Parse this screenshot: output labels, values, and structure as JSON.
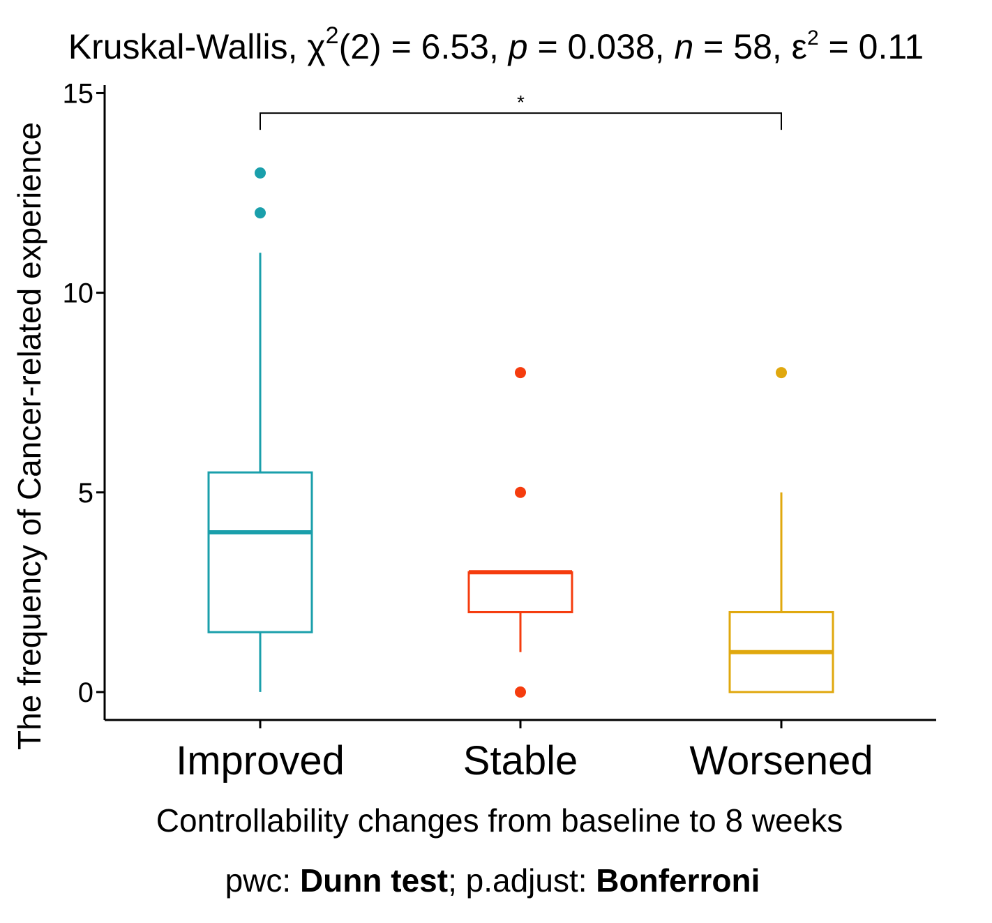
{
  "chart_data": {
    "type": "box",
    "title": {
      "prefix": "Kruskal-Wallis, ",
      "chi_symbol": "χ",
      "chi_superscript": "2",
      "chi_value": "(2) = 6.53, ",
      "p_symbol": "p",
      "p_value": " = 0.038, ",
      "n_symbol": "n",
      "n_value": " = 58, ",
      "eps_symbol": "ε",
      "eps_superscript": "2",
      "eps_value": " = 0.11"
    },
    "xlabel": "Controllability changes from baseline to 8 weeks",
    "ylabel": "The frequency of Cancer-related experience",
    "ylim": [
      -0.7,
      15.2
    ],
    "yticks": [
      0,
      5,
      10,
      15
    ],
    "ytick_labels": [
      "0",
      "5",
      "10",
      "15"
    ],
    "grid": false,
    "groups": [
      {
        "name": "Improved",
        "color": "#1a9fab",
        "whisker_low": 0,
        "q1": 1.5,
        "median": 4,
        "q3": 5.5,
        "whisker_high": 11,
        "outliers": [
          12,
          13
        ]
      },
      {
        "name": "Stable",
        "color": "#f53c0e",
        "whisker_low": 1,
        "q1": 2,
        "median": 3,
        "q3": 3,
        "whisker_high": 3,
        "outliers": [
          0,
          5,
          8
        ]
      },
      {
        "name": "Worsened",
        "color": "#e0a80e",
        "whisker_low": 0,
        "q1": 0,
        "median": 1,
        "q3": 2,
        "whisker_high": 5,
        "outliers": [
          8
        ]
      }
    ],
    "comparisons": [
      {
        "group1": "Improved",
        "group2": "Worsened",
        "y": 14.5,
        "label": "*"
      }
    ],
    "caption": {
      "pwc_prefix": "pwc: ",
      "pwc_method": "Dunn test",
      "separator": "; p.adjust: ",
      "adjust_method": "Bonferroni"
    }
  }
}
